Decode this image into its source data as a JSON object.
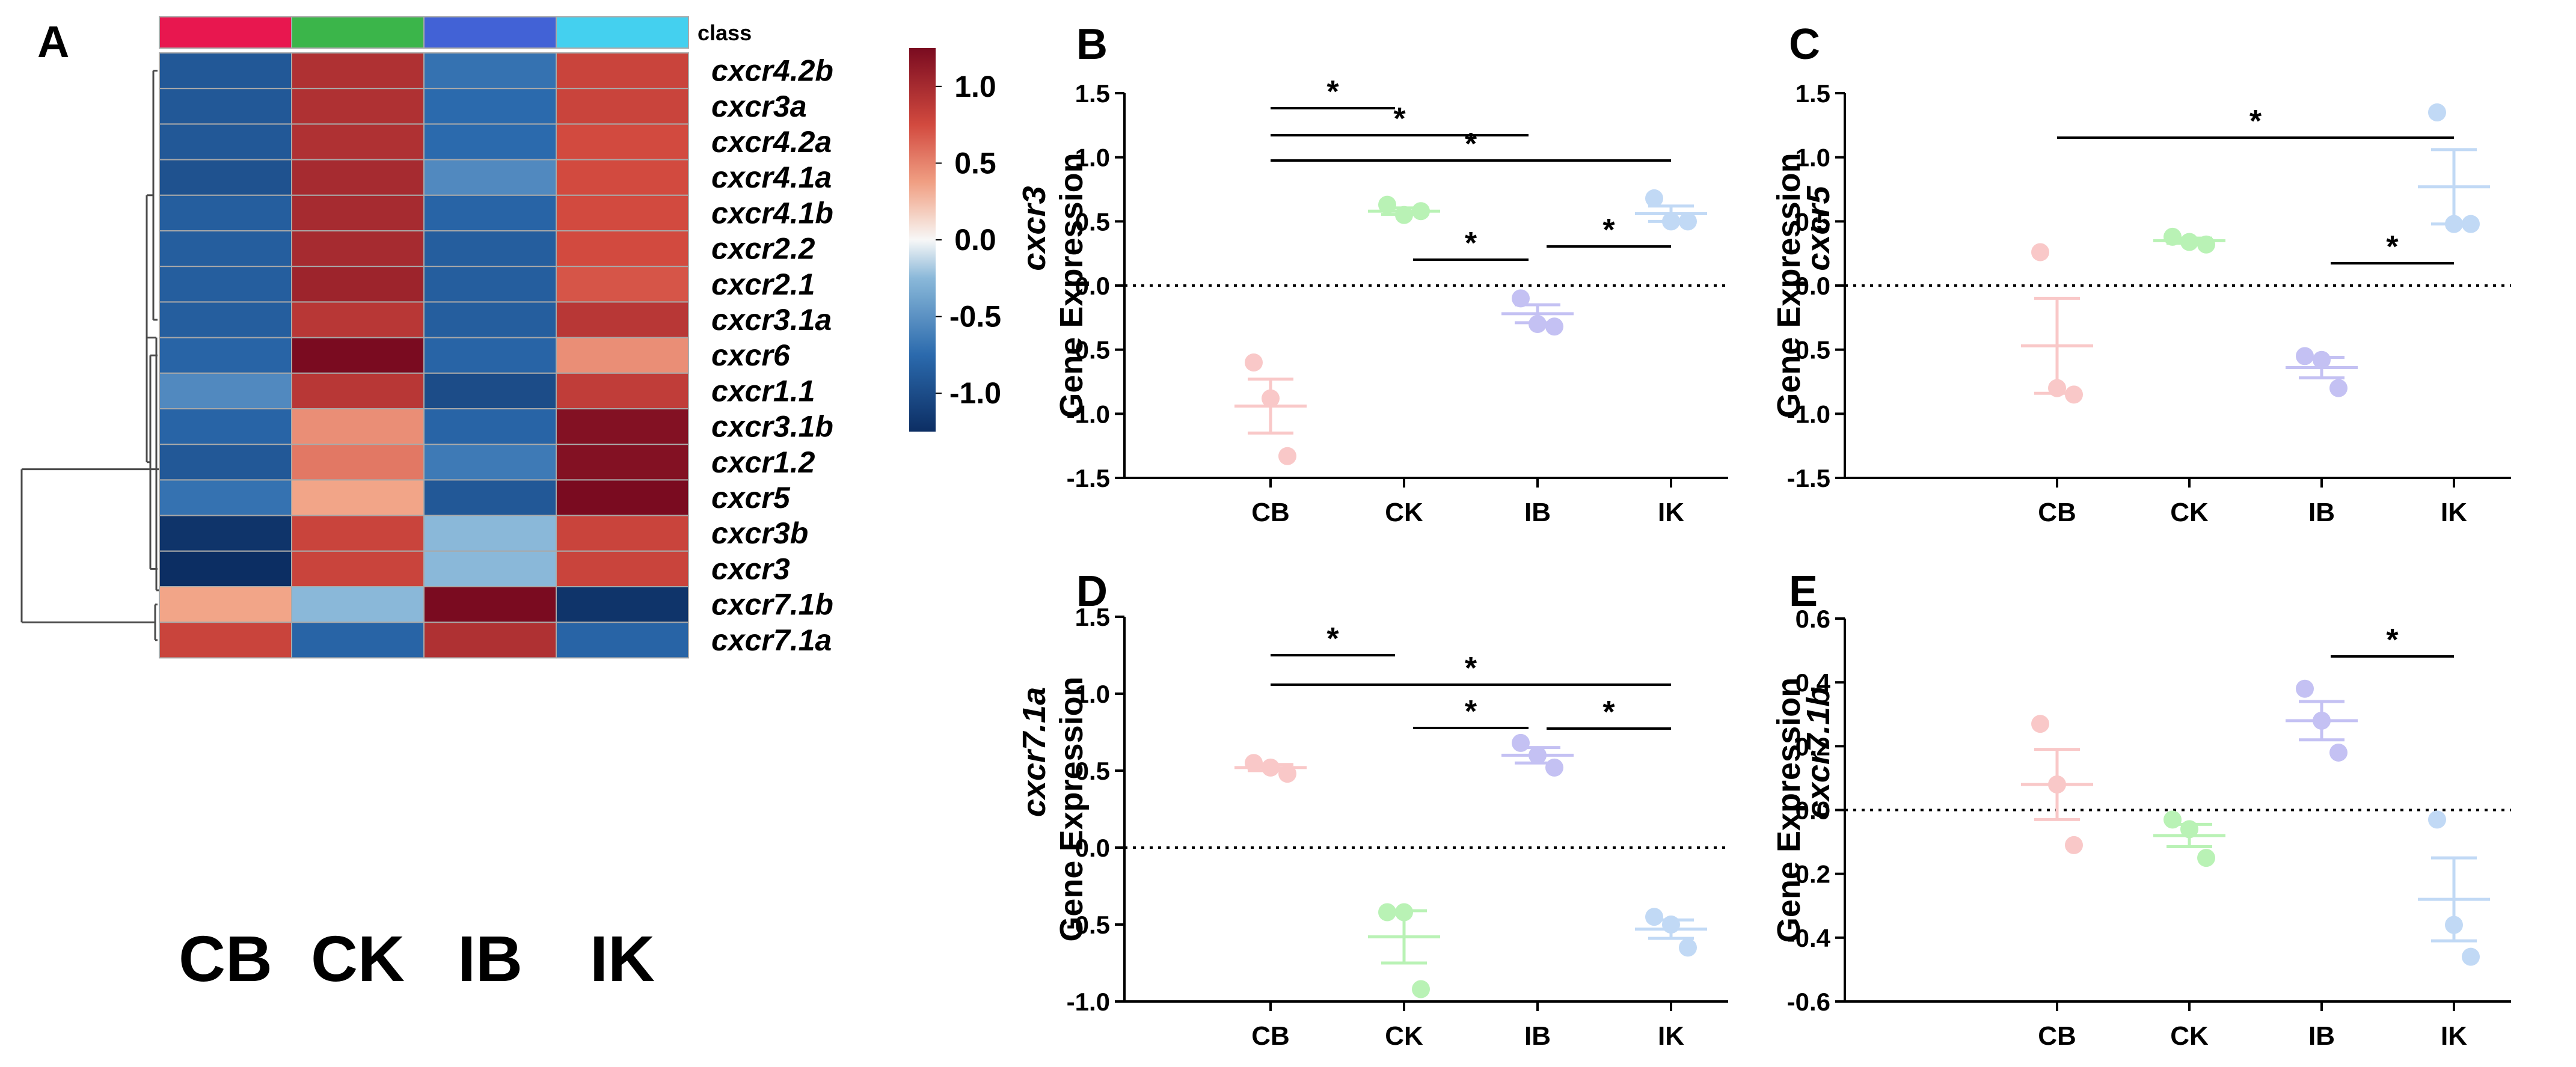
{
  "chart_data": [
    {
      "panel": "A",
      "type": "heatmap",
      "columns": [
        "CB",
        "CK",
        "IB",
        "IK"
      ],
      "class_label": "class",
      "class_colors": [
        "#e8174f",
        "#3bb54a",
        "#4262d6",
        "#44d0ef"
      ],
      "rows": [
        "cxcr4.2b",
        "cxcr3a",
        "cxcr4.2a",
        "cxcr4.1a",
        "cxcr4.1b",
        "cxcr2.2",
        "cxcr2.1",
        "cxcr3.1a",
        "cxcr6",
        "cxcr1.1",
        "cxcr3.1b",
        "cxcr1.2",
        "cxcr5",
        "cxcr3b",
        "cxcr3",
        "cxcr7.1b",
        "cxcr7.1a"
      ],
      "values": [
        [
          -0.9,
          0.95,
          -0.7,
          0.8
        ],
        [
          -0.9,
          0.95,
          -0.75,
          0.8
        ],
        [
          -0.9,
          0.95,
          -0.75,
          0.75
        ],
        [
          -0.95,
          1.0,
          -0.55,
          0.75
        ],
        [
          -0.85,
          1.0,
          -0.8,
          0.75
        ],
        [
          -0.85,
          1.0,
          -0.85,
          0.75
        ],
        [
          -0.85,
          1.05,
          -0.85,
          0.7
        ],
        [
          -0.85,
          0.9,
          -0.85,
          0.9
        ],
        [
          -0.8,
          1.3,
          -0.8,
          0.45
        ],
        [
          -0.55,
          0.9,
          -1.0,
          0.85
        ],
        [
          -0.8,
          0.45,
          -0.8,
          1.2
        ],
        [
          -0.9,
          0.55,
          -0.65,
          1.2
        ],
        [
          -0.7,
          0.35,
          -0.9,
          1.25
        ],
        [
          -1.2,
          0.8,
          -0.25,
          0.8
        ],
        [
          -1.3,
          0.8,
          -0.25,
          0.8
        ],
        [
          0.35,
          -0.25,
          1.3,
          -1.2
        ],
        [
          0.8,
          -0.8,
          0.95,
          -0.8
        ]
      ],
      "colorbar": {
        "ticks": [
          "1.0",
          "0.5",
          "0.0",
          "-0.5",
          "-1.0"
        ],
        "range": [
          -1.25,
          1.25
        ]
      },
      "dendrogram": "rows"
    },
    {
      "panel": "B",
      "type": "scatter",
      "gene": "cxcr3",
      "ylabel": "Gene Expression",
      "categories": [
        "CB",
        "CK",
        "IB",
        "IK"
      ],
      "colors": [
        "#f9c8c8",
        "#b9f2b5",
        "#c4c1f3",
        "#c1d9f5"
      ],
      "points": [
        [
          -0.6,
          -0.88,
          -1.33
        ],
        [
          0.63,
          0.55,
          0.58
        ],
        [
          -0.1,
          -0.3,
          -0.32
        ],
        [
          0.68,
          0.5,
          0.5
        ]
      ],
      "mean": [
        -0.94,
        0.58,
        -0.22,
        0.56
      ],
      "sem": [
        0.21,
        0.025,
        0.07,
        0.06
      ],
      "ylim": [
        -1.5,
        1.5
      ],
      "yticks": [
        "1.5",
        "1.0",
        "0.5",
        "0.0",
        "-0.5",
        "-1.0",
        "-1.5"
      ],
      "significance": [
        {
          "from": "CB",
          "to": "CK",
          "label": "*"
        },
        {
          "from": "CB",
          "to": "IB",
          "label": "*"
        },
        {
          "from": "CB",
          "to": "IK",
          "label": "*"
        },
        {
          "from": "CK",
          "to": "IB",
          "label": "*"
        },
        {
          "from": "IB",
          "to": "IK",
          "label": "*"
        }
      ]
    },
    {
      "panel": "C",
      "type": "scatter",
      "gene": "cxcr5",
      "ylabel": "Gene Expression",
      "categories": [
        "CB",
        "CK",
        "IB",
        "IK"
      ],
      "colors": [
        "#f9c8c8",
        "#b9f2b5",
        "#c4c1f3",
        "#c1d9f5"
      ],
      "points": [
        [
          0.26,
          -0.8,
          -0.85
        ],
        [
          0.38,
          0.34,
          0.32
        ],
        [
          -0.55,
          -0.58,
          -0.8
        ],
        [
          1.35,
          0.48,
          0.48
        ]
      ],
      "mean": [
        -0.47,
        0.35,
        -0.64,
        0.77
      ],
      "sem": [
        0.37,
        0.02,
        0.08,
        0.29
      ],
      "ylim": [
        -1.5,
        1.5
      ],
      "yticks": [
        "1.5",
        "1.0",
        "0.5",
        "0.0",
        "-0.5",
        "-1.0",
        "-1.5"
      ],
      "significance": [
        {
          "from": "CB",
          "to": "IK",
          "label": "*"
        },
        {
          "from": "IB",
          "to": "IK",
          "label": "*"
        }
      ]
    },
    {
      "panel": "D",
      "type": "scatter",
      "gene": "cxcr7.1a",
      "ylabel": "Gene Expression",
      "categories": [
        "CB",
        "CK",
        "IB",
        "IK"
      ],
      "colors": [
        "#f9c8c8",
        "#b9f2b5",
        "#c4c1f3",
        "#c1d9f5"
      ],
      "points": [
        [
          0.55,
          0.52,
          0.48
        ],
        [
          -0.42,
          -0.42,
          -0.92
        ],
        [
          0.68,
          0.6,
          0.52
        ],
        [
          -0.45,
          -0.5,
          -0.65
        ]
      ],
      "mean": [
        0.52,
        -0.58,
        0.6,
        -0.53
      ],
      "sem": [
        0.02,
        0.17,
        0.05,
        0.06
      ],
      "ylim": [
        -1.0,
        1.5
      ],
      "yticks": [
        "1.5",
        "1.0",
        "0.5",
        "0.0",
        "-0.5",
        "-1.0"
      ],
      "significance": [
        {
          "from": "CB",
          "to": "CK",
          "label": "*"
        },
        {
          "from": "CB",
          "to": "IK",
          "label": "*"
        },
        {
          "from": "CK",
          "to": "IB",
          "label": "*"
        },
        {
          "from": "IB",
          "to": "IK",
          "label": "*"
        }
      ]
    },
    {
      "panel": "E",
      "type": "scatter",
      "gene": "cxcr7.1b",
      "ylabel": "Gene Expression",
      "categories": [
        "CB",
        "CK",
        "IB",
        "IK"
      ],
      "colors": [
        "#f9c8c8",
        "#b9f2b5",
        "#c4c1f3",
        "#c1d9f5"
      ],
      "points": [
        [
          0.27,
          0.08,
          -0.11
        ],
        [
          -0.03,
          -0.06,
          -0.15
        ],
        [
          0.38,
          0.28,
          0.18
        ],
        [
          -0.03,
          -0.36,
          -0.46
        ]
      ],
      "mean": [
        0.08,
        -0.08,
        0.28,
        -0.28
      ],
      "sem": [
        0.11,
        0.035,
        0.06,
        0.13
      ],
      "ylim": [
        -0.6,
        0.6
      ],
      "yticks": [
        "0.6",
        "0.4",
        "0.2",
        "0.0",
        "-0.2",
        "-0.4",
        "-0.6"
      ],
      "significance": [
        {
          "from": "IB",
          "to": "IK",
          "label": "*"
        }
      ]
    }
  ]
}
